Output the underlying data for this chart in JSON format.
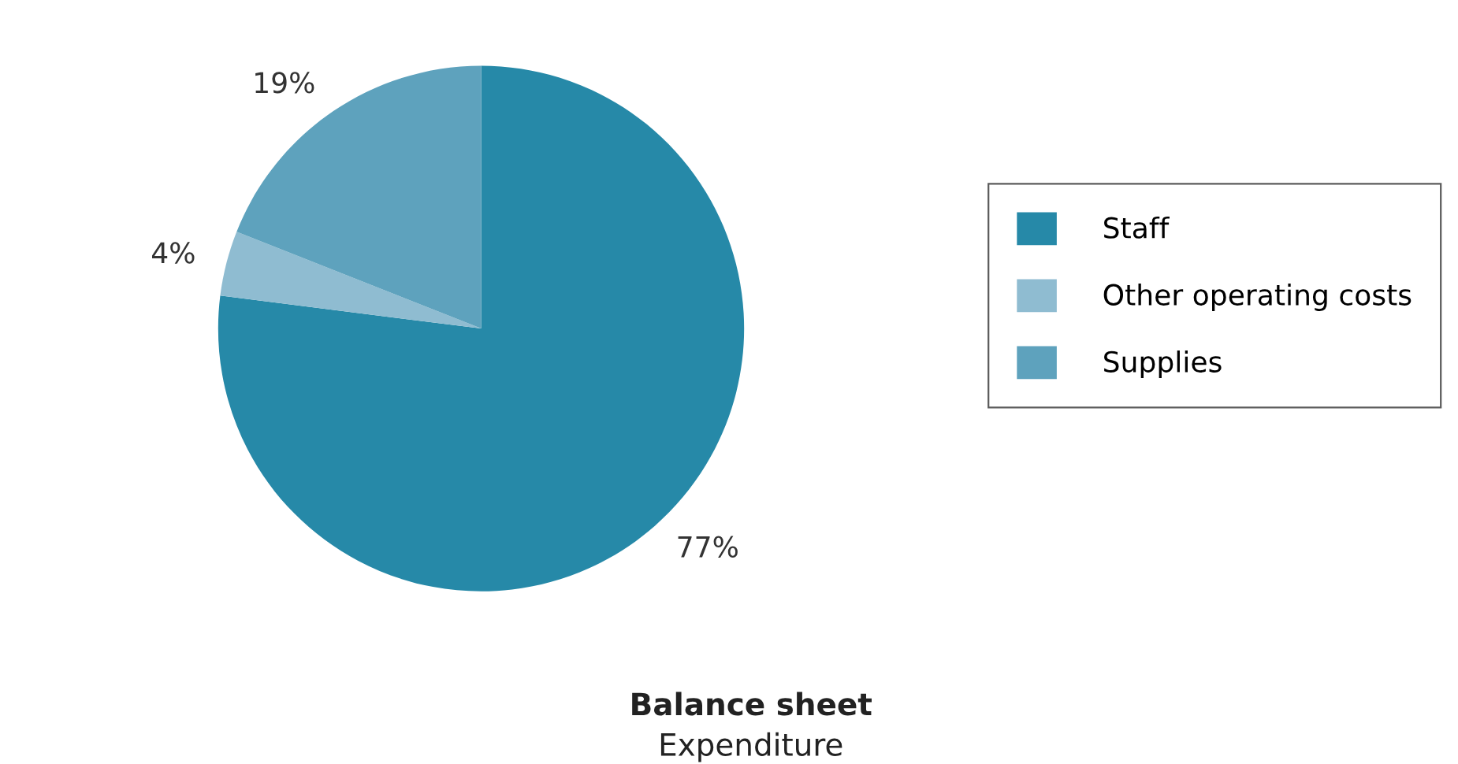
{
  "chart_data": {
    "type": "pie",
    "title": "Balance sheet",
    "subtitle": "Expenditure",
    "categories": [
      "Staff",
      "Other operating costs",
      "Supplies"
    ],
    "values": [
      77,
      4,
      19
    ],
    "colors": [
      "#2689a8",
      "#8fbcd1",
      "#5ea2bd"
    ],
    "value_labels": [
      "77%",
      "4%",
      "19%"
    ],
    "legend": "right"
  }
}
